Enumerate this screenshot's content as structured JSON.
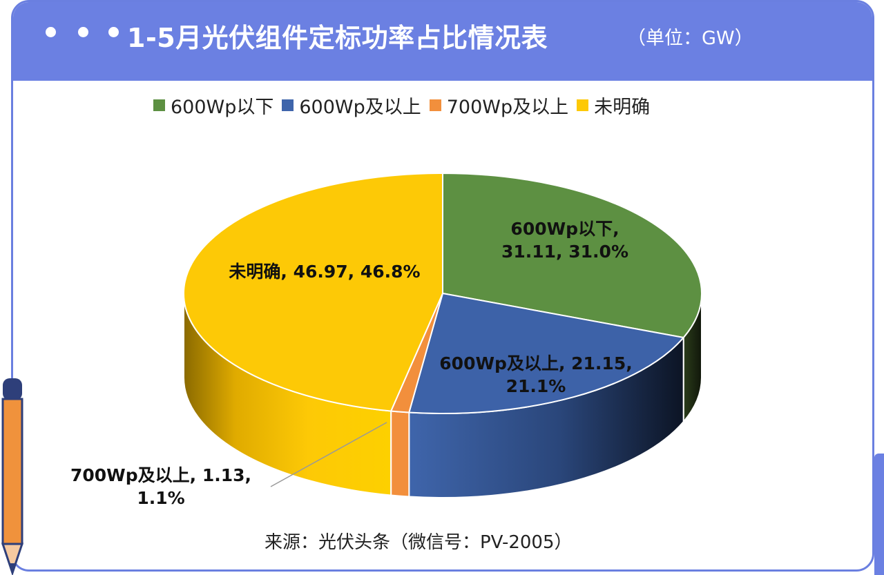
{
  "header": {
    "title": "1-5月光伏组件定标功率占比情况表",
    "unit": "（单位：GW）"
  },
  "source": "来源：光伏头条（微信号：PV-2005）",
  "colors": {
    "header": "#6b80e2",
    "green": "#5d9042",
    "blue": "#3f65ab",
    "orange": "#f28f3c",
    "yellow": "#fdc906"
  },
  "chart_data": {
    "type": "pie",
    "style": "3d",
    "legend_position": "top",
    "slices": [
      {
        "name": "600Wp以下",
        "value": 31.11,
        "percent": "31.0%",
        "color": "#5d9042",
        "side": "#1e2a12",
        "label_lines": [
          "600Wp以下,",
          "31.11, 31.0%"
        ]
      },
      {
        "name": "600Wp及以上",
        "value": 21.15,
        "percent": "21.1%",
        "color": "#3d62a8",
        "side": "#0f1a30",
        "label_lines": [
          "600Wp及以上, 21.15,",
          "21.1%"
        ]
      },
      {
        "name": "700Wp及以上",
        "value": 1.13,
        "percent": "1.1%",
        "color": "#f28f3c",
        "side": "#f28f3c",
        "label_lines": [
          "700Wp及以上, 1.13,",
          "1.1%"
        ]
      },
      {
        "name": "未明确",
        "value": 46.97,
        "percent": "46.8%",
        "color": "#fdc906",
        "side": "#fdd000",
        "label_lines": [
          "未明确, 46.97, 46.8%"
        ]
      }
    ]
  }
}
